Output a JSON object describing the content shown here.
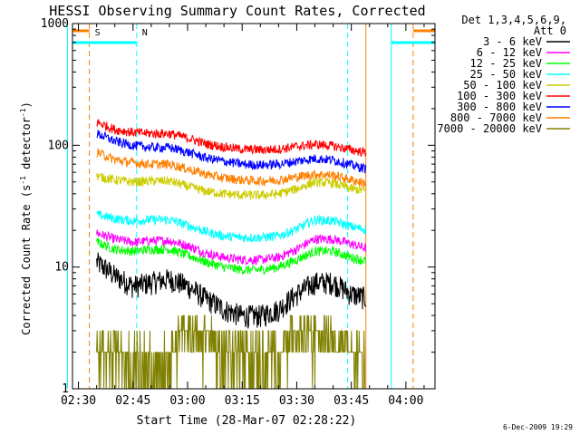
{
  "chart_data": {
    "type": "line",
    "title": "HESSI Observing Summary Count Rates, Corrected",
    "xlabel": "Start Time (28-Mar-07 02:28:22)",
    "ylabel_main": "Corrected Count Rate (s",
    "ylabel_sup1": "-1",
    "ylabel_mid": " detector",
    "ylabel_sup2": "-1",
    "ylabel_end": ")",
    "ylabel_full": "Corrected Count Rate (s^-1 detector^-1)",
    "yscale": "log",
    "ylim": [
      1,
      1000
    ],
    "xlim": [
      "02:28:22",
      "04:08:00"
    ],
    "x_ticks": [
      "02:30",
      "02:45",
      "03:00",
      "03:15",
      "03:30",
      "03:45",
      "04:00"
    ],
    "y_ticks": [
      "1",
      "10",
      "100",
      "1000"
    ],
    "legend_title": [
      "Det 1,3,4,5,6,9,",
      "Att 0"
    ],
    "legend_placement": "right",
    "footer_date": "6-Dec-2009 19:29",
    "time_knots": [
      "02:35",
      "02:40",
      "02:45",
      "02:50",
      "02:55",
      "03:00",
      "03:05",
      "03:10",
      "03:15",
      "03:20",
      "03:25",
      "03:30",
      "03:35",
      "03:40",
      "03:45",
      "03:50"
    ],
    "series": [
      {
        "name": "3 - 6 keV",
        "color": "#000000",
        "values": [
          11,
          8.5,
          7,
          7.5,
          8,
          7,
          5.5,
          4.5,
          4,
          4,
          4.5,
          6,
          7.5,
          7.5,
          6,
          5.5
        ]
      },
      {
        "name": "6 - 12 keV",
        "color": "#ff00ff",
        "values": [
          19,
          17,
          16,
          16.5,
          16.5,
          15,
          13,
          12,
          11.5,
          11.5,
          12,
          14,
          17,
          17,
          15.5,
          14
        ]
      },
      {
        "name": "12 - 25 keV",
        "color": "#00ff00",
        "values": [
          16,
          14,
          13.5,
          14,
          14,
          12.5,
          11,
          10,
          9.5,
          9.5,
          10,
          11.5,
          13.5,
          13.5,
          12,
          11
        ]
      },
      {
        "name": "25 - 50 keV",
        "color": "#00ffff",
        "values": [
          27,
          25,
          24,
          24.5,
          24.5,
          22,
          19.5,
          18,
          17.5,
          17.5,
          18,
          20.5,
          24.5,
          24,
          21.5,
          20
        ]
      },
      {
        "name": "50 - 100 keV",
        "color": "#cccc00",
        "values": [
          56,
          52,
          50,
          51,
          51,
          46,
          42,
          40,
          39,
          39,
          40,
          44,
          50,
          49,
          44,
          42
        ]
      },
      {
        "name": "100 - 300 keV",
        "color": "#ff0000",
        "values": [
          155,
          135,
          128,
          125,
          125,
          115,
          103,
          97,
          93,
          92,
          93,
          98,
          102,
          99,
          92,
          86
        ]
      },
      {
        "name": "300 - 800 keV",
        "color": "#0000ff",
        "values": [
          125,
          108,
          100,
          96,
          96,
          88,
          79,
          74,
          70,
          69,
          70,
          74,
          78,
          76,
          69,
          63
        ]
      },
      {
        "name": "800 - 7000 keV",
        "color": "#ff8000",
        "values": [
          88,
          76,
          72,
          70,
          70,
          64,
          58,
          54,
          52,
          51,
          52,
          55,
          58,
          57,
          52,
          48
        ]
      },
      {
        "name": "7000 - 20000 keV",
        "color": "#808000",
        "values": [
          2,
          2,
          1,
          1,
          2,
          3,
          3,
          2,
          2,
          2,
          2,
          3,
          3,
          3,
          2,
          2
        ]
      }
    ],
    "markers": [
      {
        "label": "S",
        "color": "#ff8000",
        "style": "dashed",
        "times": [
          "02:33",
          "04:02"
        ]
      },
      {
        "label": "N",
        "color": "#00ffff",
        "style": "dashed",
        "times": [
          "02:46",
          "03:44"
        ]
      },
      {
        "label": "",
        "color": "#00ffff",
        "style": "solid",
        "times": [
          "02:27",
          "03:56"
        ]
      },
      {
        "label": "",
        "color": "#ff8000",
        "style": "solid",
        "times": [
          "03:49"
        ]
      }
    ]
  }
}
